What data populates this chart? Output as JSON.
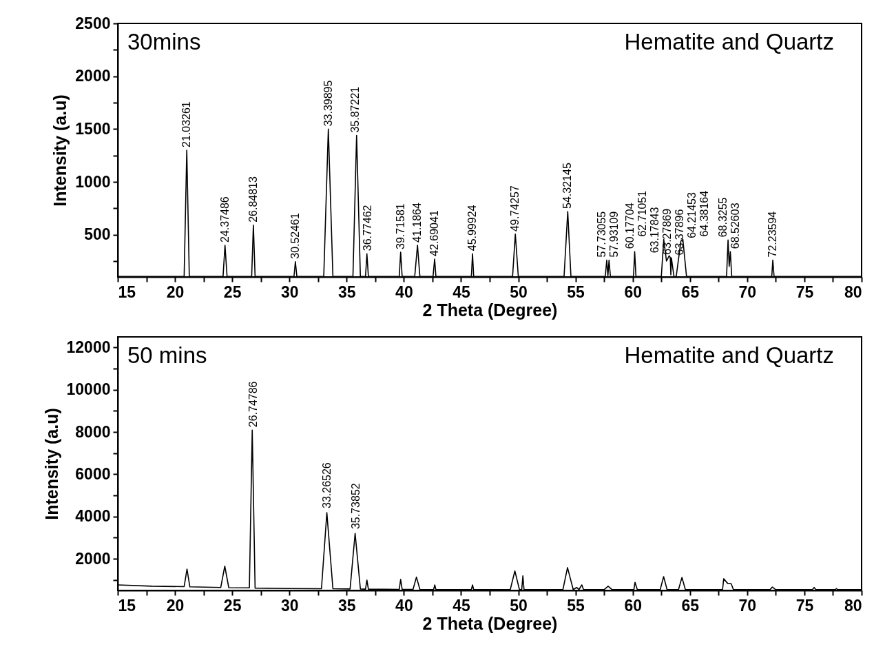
{
  "chart_data": [
    {
      "type": "line",
      "xlabel": "2 Theta (Degree)",
      "ylabel": "Intensity (a.u)",
      "xlim": [
        15,
        80
      ],
      "ylim": [
        100,
        2500
      ],
      "xticks": [
        15,
        {
          "value": 17.5,
          "label": null
        },
        20,
        {
          "value": 22.5,
          "label": null
        },
        25,
        {
          "value": 27.5,
          "label": null
        },
        30,
        {
          "value": 32.5,
          "label": null
        },
        35,
        {
          "value": 37.5,
          "label": null
        },
        40,
        {
          "value": 42.5,
          "label": null
        },
        45,
        {
          "value": 47.5,
          "label": null
        },
        50,
        {
          "value": 52.5,
          "label": null
        },
        55,
        {
          "value": 57.5,
          "label": null
        },
        60,
        {
          "value": 62.5,
          "label": null
        },
        65,
        {
          "value": 67.5,
          "label": null
        },
        70,
        {
          "value": 72.5,
          "label": null
        },
        75,
        {
          "value": 77.5,
          "label": null
        },
        80
      ],
      "yticks": [
        {
          "value": 250,
          "label": null
        },
        500,
        {
          "value": 750,
          "label": null
        },
        1000,
        {
          "value": 1250,
          "label": null
        },
        1500,
        {
          "value": 1750,
          "label": null
        },
        2000,
        {
          "value": 2250,
          "label": null
        },
        2500
      ],
      "series": [
        {
          "color": "#000000",
          "x": [
            15,
            20.8,
            21.03,
            21.25,
            24.2,
            24.37,
            24.55,
            26.7,
            26.85,
            27.0,
            30.4,
            30.52,
            30.65,
            33.0,
            33.4,
            33.8,
            35.55,
            35.87,
            36.2,
            36.65,
            36.77,
            36.9,
            39.6,
            39.72,
            39.85,
            40.95,
            41.19,
            41.4,
            42.55,
            42.69,
            42.8,
            45.9,
            46.0,
            46.1,
            49.5,
            49.74,
            50.0,
            54.0,
            54.32,
            54.6,
            57.6,
            57.73,
            57.83,
            57.93,
            58.05,
            60.07,
            60.17,
            60.28,
            62.5,
            62.71,
            62.95,
            63.18,
            63.28,
            63.33,
            63.38,
            63.6,
            63.8,
            64.21,
            64.38,
            64.7,
            68.2,
            68.33,
            68.43,
            68.53,
            68.65,
            72.15,
            72.24,
            72.35,
            80
          ],
          "values": [
            105,
            105,
            1300,
            105,
            105,
            400,
            105,
            105,
            590,
            105,
            105,
            245,
            105,
            105,
            1500,
            105,
            105,
            1440,
            105,
            105,
            320,
            105,
            105,
            335,
            105,
            105,
            400,
            105,
            105,
            270,
            105,
            105,
            320,
            105,
            105,
            505,
            105,
            105,
            720,
            105,
            105,
            260,
            110,
            260,
            105,
            105,
            340,
            105,
            105,
            455,
            250,
            300,
            285,
            120,
            280,
            105,
            105,
            440,
            455,
            105,
            105,
            450,
            200,
            340,
            105,
            105,
            260,
            105,
            105
          ]
        }
      ],
      "annotations": [
        "30mins",
        "Hematite and Quartz",
        {
          "text": "21.03261",
          "x": 21.03,
          "y": 1300
        },
        {
          "text": "24.37486",
          "x": 24.37,
          "y": 400
        },
        {
          "text": "26.84813",
          "x": 26.85,
          "y": 590
        },
        {
          "text": "30.52461",
          "x": 30.52,
          "y": 245
        },
        {
          "text": "33.39895",
          "x": 33.4,
          "y": 1500
        },
        {
          "text": "35.87221",
          "x": 35.87,
          "y": 1440
        },
        {
          "text": "36.77462",
          "x": 36.77,
          "y": 320
        },
        {
          "text": "39.71581",
          "x": 39.72,
          "y": 335
        },
        {
          "text": "41.1864",
          "x": 41.19,
          "y": 400
        },
        {
          "text": "42.69041",
          "x": 42.69,
          "y": 270
        },
        {
          "text": "45.99924",
          "x": 46.0,
          "y": 320
        },
        {
          "text": "49.74257",
          "x": 49.74,
          "y": 505
        },
        {
          "text": "54.32145",
          "x": 54.32,
          "y": 720
        },
        {
          "text": "57.73055",
          "x": 57.73,
          "y": 260
        },
        {
          "text": "57.93109",
          "x": 57.93,
          "y": 260
        },
        {
          "text": "60.17704",
          "x": 60.17,
          "y": 340
        },
        {
          "text": "62.71051",
          "x": 62.71,
          "y": 455
        },
        {
          "text": "63.17843",
          "x": 63.18,
          "y": 300
        },
        {
          "text": "63.27869",
          "x": 63.28,
          "y": 285
        },
        {
          "text": "64.21453",
          "x": 64.21,
          "y": 440
        },
        {
          "text": "64.38164",
          "x": 64.38,
          "y": 455
        },
        {
          "text": "63.37896",
          "x": 63.38,
          "y": 280
        },
        {
          "text": "68.3255",
          "x": 68.33,
          "y": 450
        },
        {
          "text": "68.52603",
          "x": 68.53,
          "y": 340
        },
        {
          "text": "72.23594",
          "x": 72.24,
          "y": 260
        }
      ]
    },
    {
      "type": "line",
      "xlabel": "2 Theta (Degree)",
      "ylabel": "Intensity (a.u)",
      "xlim": [
        15,
        80
      ],
      "ylim": [
        500,
        12500
      ],
      "xticks": [
        15,
        {
          "value": 17.5,
          "label": null
        },
        20,
        {
          "value": 22.5,
          "label": null
        },
        25,
        {
          "value": 27.5,
          "label": null
        },
        30,
        {
          "value": 32.5,
          "label": null
        },
        35,
        {
          "value": 37.5,
          "label": null
        },
        40,
        {
          "value": 42.5,
          "label": null
        },
        45,
        {
          "value": 47.5,
          "label": null
        },
        50,
        {
          "value": 52.5,
          "label": null
        },
        55,
        {
          "value": 57.5,
          "label": null
        },
        60,
        {
          "value": 62.5,
          "label": null
        },
        65,
        {
          "value": 67.5,
          "label": null
        },
        70,
        {
          "value": 72.5,
          "label": null
        },
        75,
        {
          "value": 77.5,
          "label": null
        },
        80
      ],
      "yticks": [
        {
          "value": 1000,
          "label": null
        },
        2000,
        {
          "value": 3000,
          "label": null
        },
        4000,
        {
          "value": 5000,
          "label": null
        },
        6000,
        {
          "value": 7000,
          "label": null
        },
        8000,
        {
          "value": 9000,
          "label": null
        },
        10000,
        {
          "value": 11000,
          "label": null
        },
        12000
      ],
      "series": [
        {
          "color": "#000000",
          "x": [
            15,
            18,
            20.8,
            21.05,
            21.3,
            24.0,
            24.35,
            24.7,
            26.5,
            26.75,
            27.0,
            30,
            32.8,
            33.27,
            33.8,
            35.3,
            35.74,
            36.2,
            36.65,
            36.77,
            36.9,
            39.6,
            39.72,
            39.85,
            40.8,
            41.1,
            41.4,
            42.6,
            42.7,
            42.8,
            45.9,
            46.0,
            46.1,
            49.3,
            49.7,
            50.1,
            50.3,
            50.4,
            50.5,
            53.9,
            54.3,
            54.8,
            55.1,
            55.3,
            55.55,
            55.7,
            57.5,
            57.85,
            58.2,
            60.1,
            60.2,
            60.4,
            62.4,
            62.7,
            63.0,
            64.0,
            64.3,
            64.6,
            67.85,
            67.95,
            68.3,
            68.6,
            68.8,
            72.0,
            72.2,
            72.5,
            75.7,
            75.85,
            76.0,
            77.7,
            77.8,
            77.9,
            80
          ],
          "values": [
            760,
            700,
            680,
            1510,
            670,
            640,
            1650,
            630,
            620,
            8090,
            610,
            590,
            580,
            4180,
            580,
            570,
            3200,
            570,
            560,
            990,
            560,
            550,
            1020,
            550,
            550,
            1130,
            550,
            540,
            760,
            540,
            540,
            760,
            540,
            540,
            1420,
            540,
            540,
            1190,
            540,
            540,
            1580,
            540,
            640,
            540,
            760,
            540,
            540,
            700,
            540,
            540,
            880,
            540,
            540,
            1150,
            540,
            540,
            1110,
            540,
            540,
            1050,
            830,
            820,
            540,
            540,
            660,
            540,
            540,
            640,
            540,
            540,
            590,
            540,
            540
          ]
        }
      ],
      "annotations": [
        "50 mins",
        "Hematite and Quartz",
        {
          "text": "26.74786",
          "x": 26.86,
          "y": 8090
        },
        {
          "text": "33.26526",
          "x": 33.3,
          "y": 4250
        },
        {
          "text": "35.73852",
          "x": 35.8,
          "y": 3270
        }
      ]
    }
  ]
}
